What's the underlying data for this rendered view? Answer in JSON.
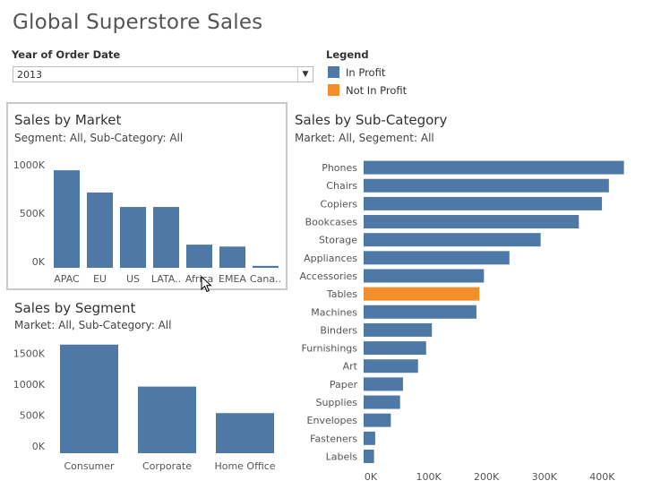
{
  "title": "Global Superstore Sales",
  "filter": {
    "label": "Year of Order Date",
    "value": "2013",
    "arrow_icon": "dropdown-arrow-icon"
  },
  "legend": {
    "title": "Legend",
    "items": [
      {
        "label": "In Profit",
        "color": "#4e79a7"
      },
      {
        "label": "Not In Profit",
        "color": "#f28e2b"
      }
    ]
  },
  "colors": {
    "in_profit": "#4e79a7",
    "not_in_profit": "#f28e2b"
  },
  "market": {
    "title": "Sales by Market",
    "subtitle": "Segment: All, Sub-Category: All"
  },
  "segment": {
    "title": "Sales by Segment",
    "subtitle": "Market: All, Sub-Category: All"
  },
  "subcat": {
    "title": "Sales by Sub-Category",
    "subtitle": "Market: All, Segement: All"
  },
  "chart_data": [
    {
      "type": "bar",
      "title": "Sales by Market",
      "subtitle": "Segment: All, Sub-Category: All",
      "categories": [
        "APAC",
        "EU",
        "US",
        "LATA..",
        "Africa",
        "EMEA",
        "Cana.."
      ],
      "values": [
        1010000,
        780000,
        630000,
        630000,
        240000,
        220000,
        20000
      ],
      "ylim": [
        0,
        1150000
      ],
      "yticks": [
        0,
        500000,
        1000000
      ],
      "ytick_labels": [
        "0K",
        "500K",
        "1000K"
      ],
      "xlabel": "",
      "ylabel": ""
    },
    {
      "type": "bar",
      "title": "Sales by Segment",
      "subtitle": "Market: All, Sub-Category: All",
      "categories": [
        "Consumer",
        "Corporate",
        "Home Office"
      ],
      "values": [
        1760000,
        1080000,
        650000
      ],
      "ylim": [
        0,
        1800000
      ],
      "yticks": [
        0,
        500000,
        1000000,
        1500000
      ],
      "ytick_labels": [
        "0K",
        "500K",
        "1000K",
        "1500K"
      ],
      "xlabel": "",
      "ylabel": ""
    },
    {
      "type": "bar",
      "orientation": "horizontal",
      "title": "Sales by Sub-Category",
      "subtitle": "Market: All, Segement: All",
      "categories": [
        "Phones",
        "Chairs",
        "Copiers",
        "Bookcases",
        "Storage",
        "Appliances",
        "Accessories",
        "Tables",
        "Machines",
        "Binders",
        "Furnishings",
        "Art",
        "Paper",
        "Supplies",
        "Envelopes",
        "Fasteners",
        "Labels"
      ],
      "values": [
        450000,
        424000,
        412000,
        372000,
        306000,
        252000,
        208000,
        200000,
        195000,
        118000,
        108000,
        94000,
        68000,
        63000,
        47000,
        20000,
        18000
      ],
      "profit": [
        "in",
        "in",
        "in",
        "in",
        "in",
        "in",
        "in",
        "not",
        "in",
        "in",
        "in",
        "in",
        "in",
        "in",
        "in",
        "in",
        "in"
      ],
      "xlim": [
        0,
        480000
      ],
      "xticks": [
        0,
        100000,
        200000,
        300000,
        400000
      ],
      "xtick_labels": [
        "0K",
        "100K",
        "200K",
        "300K",
        "400K"
      ],
      "xlabel": "",
      "ylabel": ""
    }
  ]
}
